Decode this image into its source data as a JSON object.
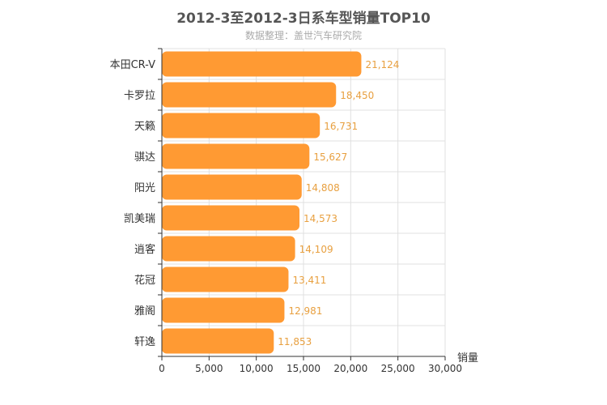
{
  "chart_data": {
    "type": "bar",
    "orientation": "horizontal",
    "title": "2012-3至2012-3日系车型销量TOP10",
    "subtitle": "数据整理：盖世汽车研究院",
    "xlabel": "销量",
    "ylabel": "",
    "xlim": [
      0,
      30000
    ],
    "ticks": [
      "0",
      "5,000",
      "10,000",
      "15,000",
      "20,000",
      "25,000",
      "30,000"
    ],
    "grid": true,
    "bar_color": "#ff9a33",
    "value_color": "#e8a040",
    "categories": [
      "本田CR-V",
      "卡罗拉",
      "天籁",
      "骐达",
      "阳光",
      "凯美瑞",
      "逍客",
      "花冠",
      "雅阁",
      "轩逸"
    ],
    "values": [
      21124,
      18450,
      16731,
      15627,
      14808,
      14573,
      14109,
      13411,
      12981,
      11853
    ],
    "value_labels": [
      "21,124",
      "18,450",
      "16,731",
      "15,627",
      "14,808",
      "14,573",
      "14,109",
      "13,411",
      "12,981",
      "11,853"
    ]
  }
}
